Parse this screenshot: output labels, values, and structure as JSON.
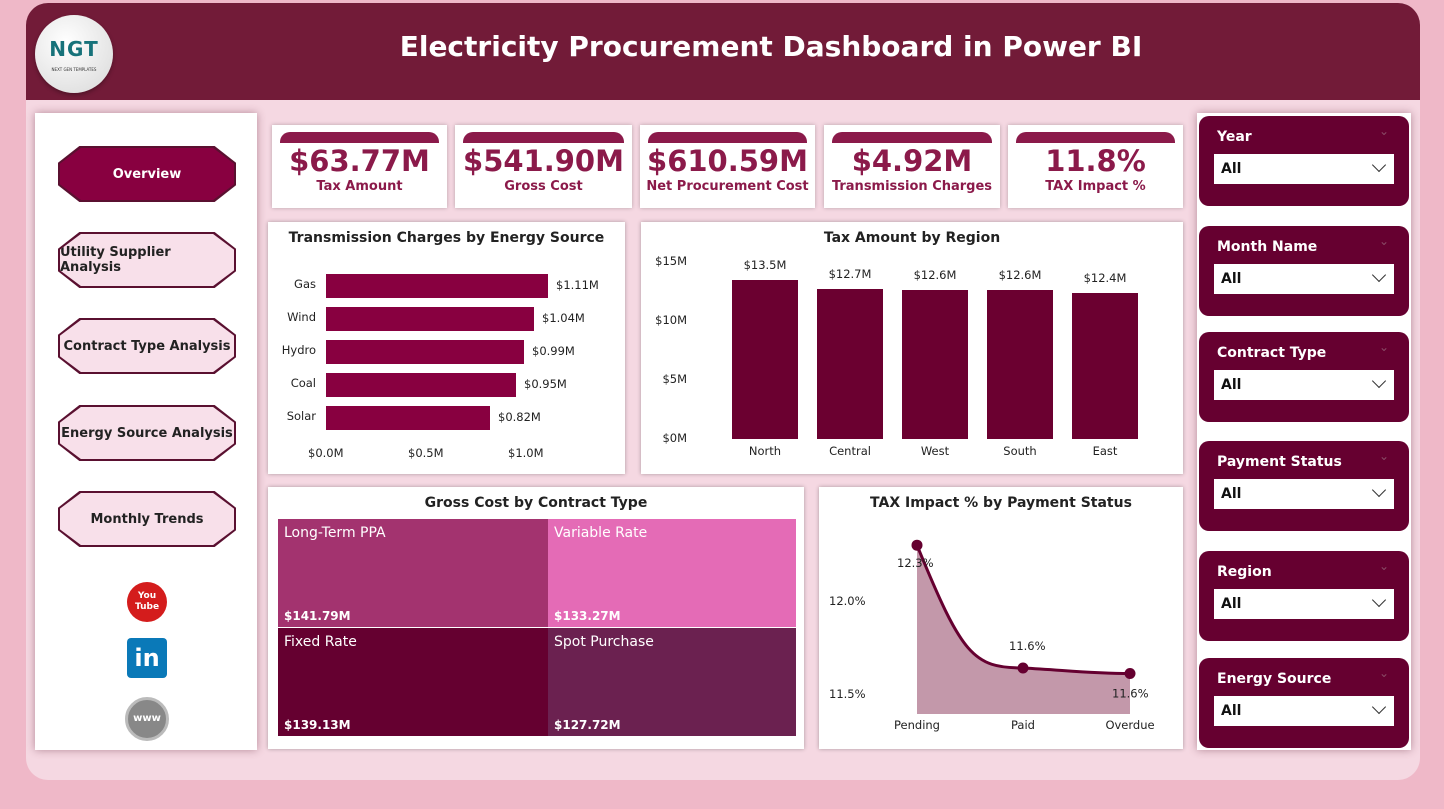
{
  "header": {
    "title": "Electricity Procurement Dashboard in Power BI",
    "logo_text": "NGT",
    "logo_subtext": "NEXT GEN TEMPLATES"
  },
  "nav": {
    "items": [
      {
        "label": "Overview",
        "active": true
      },
      {
        "label": "Utility Supplier Analysis"
      },
      {
        "label": "Contract Type Analysis"
      },
      {
        "label": "Energy Source Analysis"
      },
      {
        "label": "Monthly Trends"
      }
    ],
    "social": [
      {
        "icon": "youtube-icon",
        "text": "You Tube"
      },
      {
        "icon": "linkedin-icon",
        "text": "in"
      },
      {
        "icon": "globe-icon",
        "text": "www"
      }
    ]
  },
  "kpis": [
    {
      "value": "$63.77M",
      "label": "Tax Amount"
    },
    {
      "value": "$541.90M",
      "label": "Gross Cost"
    },
    {
      "value": "$610.59M",
      "label": "Net Procurement Cost"
    },
    {
      "value": "$4.92M",
      "label": "Transmission Charges"
    },
    {
      "value": "11.8%",
      "label": "TAX Impact %"
    }
  ],
  "colors": {
    "primary": "#721b38",
    "accent": "#8b1a4a",
    "bar1": "#880040",
    "bar2": "#6b0030"
  },
  "slicers": [
    {
      "name": "Year",
      "value": "All"
    },
    {
      "name": "Month Name",
      "value": "All"
    },
    {
      "name": "Contract Type",
      "value": "All"
    },
    {
      "name": "Payment Status",
      "value": "All"
    },
    {
      "name": "Region",
      "value": "All"
    },
    {
      "name": "Energy Source",
      "value": "All"
    }
  ],
  "chart_data": [
    {
      "type": "bar",
      "orientation": "horizontal",
      "title": "Transmission Charges by Energy Source",
      "categories": [
        "Gas",
        "Wind",
        "Hydro",
        "Coal",
        "Solar"
      ],
      "values": [
        1.11,
        1.04,
        0.99,
        0.95,
        0.82
      ],
      "labels": [
        "$1.11M",
        "$1.04M",
        "$0.99M",
        "$0.95M",
        "$0.82M"
      ],
      "xticks": [
        "$0.0M",
        "$0.5M",
        "$1.0M"
      ],
      "xlim": [
        0,
        1.25
      ],
      "unit": "M"
    },
    {
      "type": "bar",
      "title": "Tax Amount by Region",
      "categories": [
        "North",
        "Central",
        "West",
        "South",
        "East"
      ],
      "values": [
        13.5,
        12.7,
        12.6,
        12.6,
        12.4
      ],
      "labels": [
        "$13.5M",
        "$12.7M",
        "$12.6M",
        "$12.6M",
        "$12.4M"
      ],
      "yticks": [
        "$0M",
        "$5M",
        "$10M",
        "$15M"
      ],
      "ylim": [
        0,
        15
      ]
    },
    {
      "type": "treemap",
      "title": "Gross Cost by Contract Type",
      "items": [
        {
          "name": "Long-Term PPA",
          "value": 141.79,
          "label": "$141.79M",
          "color": "#a3336f"
        },
        {
          "name": "Variable Rate",
          "value": 133.27,
          "label": "$133.27M",
          "color": "#e46bb6"
        },
        {
          "name": "Fixed Rate",
          "value": 139.13,
          "label": "$139.13M",
          "color": "#650030"
        },
        {
          "name": "Spot Purchase",
          "value": 127.72,
          "label": "$127.72M",
          "color": "#6b2150"
        }
      ]
    },
    {
      "type": "area",
      "title": "TAX Impact % by Payment Status",
      "categories": [
        "Pending",
        "Paid",
        "Overdue"
      ],
      "values": [
        12.3,
        11.64,
        11.61
      ],
      "labels": [
        "12.3%",
        "11.6%",
        "11.6%"
      ],
      "yticks": [
        "11.5%",
        "12.0%"
      ],
      "ylim": [
        11.4,
        12.4
      ]
    }
  ]
}
